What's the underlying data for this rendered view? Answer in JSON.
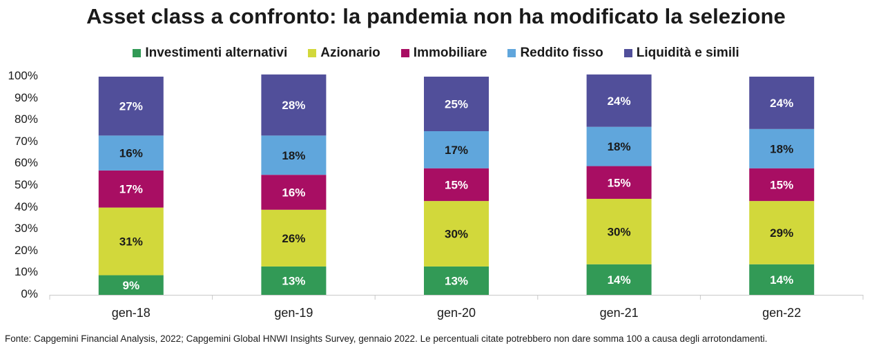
{
  "chart_data": {
    "type": "bar",
    "stacked": true,
    "title": "Asset class a confronto: la pandemia non ha modificato la selezione",
    "categories": [
      "gen-18",
      "gen-19",
      "gen-20",
      "gen-21",
      "gen-22"
    ],
    "series": [
      {
        "name": "Investimenti alternativi",
        "color": "#329a56",
        "label_color": "#ffffff",
        "values": [
          9,
          13,
          13,
          14,
          14
        ]
      },
      {
        "name": "Azionario",
        "color": "#d2d83b",
        "label_color": "#1a1a1a",
        "values": [
          31,
          26,
          30,
          30,
          29
        ]
      },
      {
        "name": "Immobiliare",
        "color": "#a80e63",
        "label_color": "#ffffff",
        "values": [
          17,
          16,
          15,
          15,
          15
        ]
      },
      {
        "name": "Reddito fisso",
        "color": "#60a6dc",
        "label_color": "#1a1a1a",
        "values": [
          16,
          18,
          17,
          18,
          18
        ]
      },
      {
        "name": "Liquidità e simili",
        "color": "#514f9a",
        "label_color": "#ffffff",
        "values": [
          27,
          28,
          25,
          24,
          24
        ]
      }
    ],
    "data_labels": [
      [
        "9%",
        "13%",
        "13%",
        "14%",
        "14%"
      ],
      [
        "31%",
        "26%",
        "30%",
        "30%",
        "29%"
      ],
      [
        "17%",
        "16%",
        "15%",
        "15%",
        "15%"
      ],
      [
        "16%",
        "18%",
        "17%",
        "18%",
        "18%"
      ],
      [
        "27%",
        "28%",
        "25%",
        "24%",
        "24%"
      ]
    ],
    "y_ticks": [
      "0%",
      "10%",
      "20%",
      "30%",
      "40%",
      "50%",
      "60%",
      "70%",
      "80%",
      "90%",
      "100%"
    ],
    "ylim": [
      0,
      100
    ],
    "grid": false,
    "legend_position": "top",
    "xlabel": "",
    "ylabel": ""
  },
  "footer": "Fonte: Capgemini Financial Analysis, 2022; Capgemini Global HNWI Insights Survey, gennaio 2022. Le percentuali citate potrebbero non dare somma 100 a causa degli arrotondamenti."
}
